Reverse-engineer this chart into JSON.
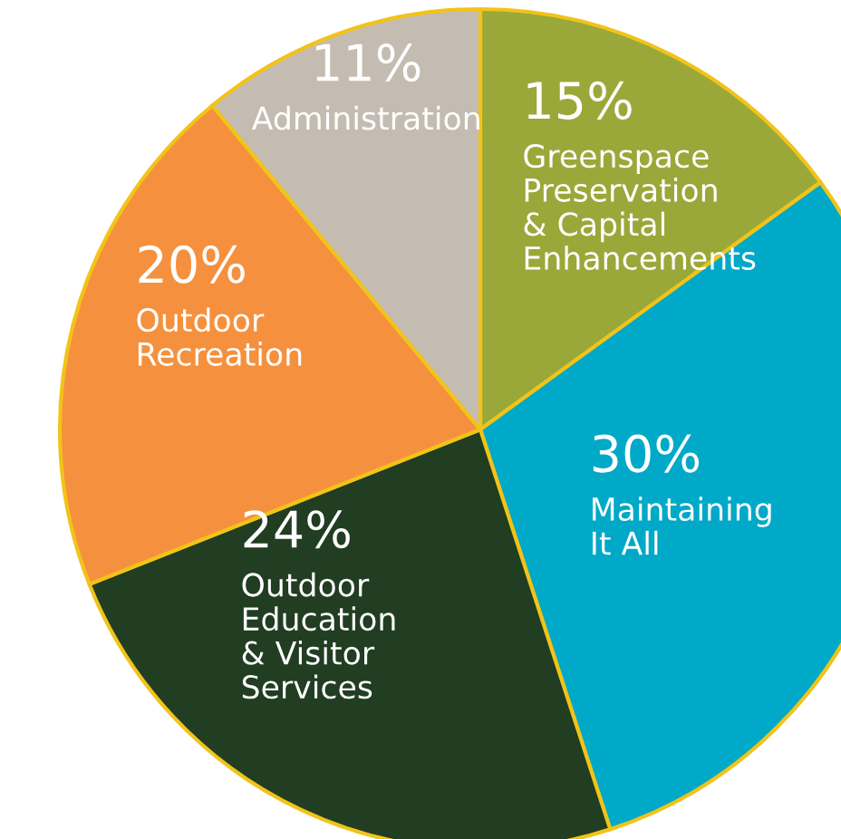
{
  "chart_data": {
    "type": "pie",
    "categories": [
      "Greenspace\nPreservation\n& Capital\nEnhancements",
      "Maintaining\nIt All",
      "Outdoor\nEducation\n& Visitor\nServices",
      "Outdoor\nRecreation",
      "Administration"
    ],
    "values": [
      15,
      30,
      24,
      20,
      11
    ],
    "value_labels": [
      "15%",
      "30%",
      "24%",
      "20%",
      "11%"
    ],
    "colors": [
      "#9aa83a",
      "#00a9c8",
      "#213d22",
      "#f5913e",
      "#c4bcb1"
    ]
  }
}
